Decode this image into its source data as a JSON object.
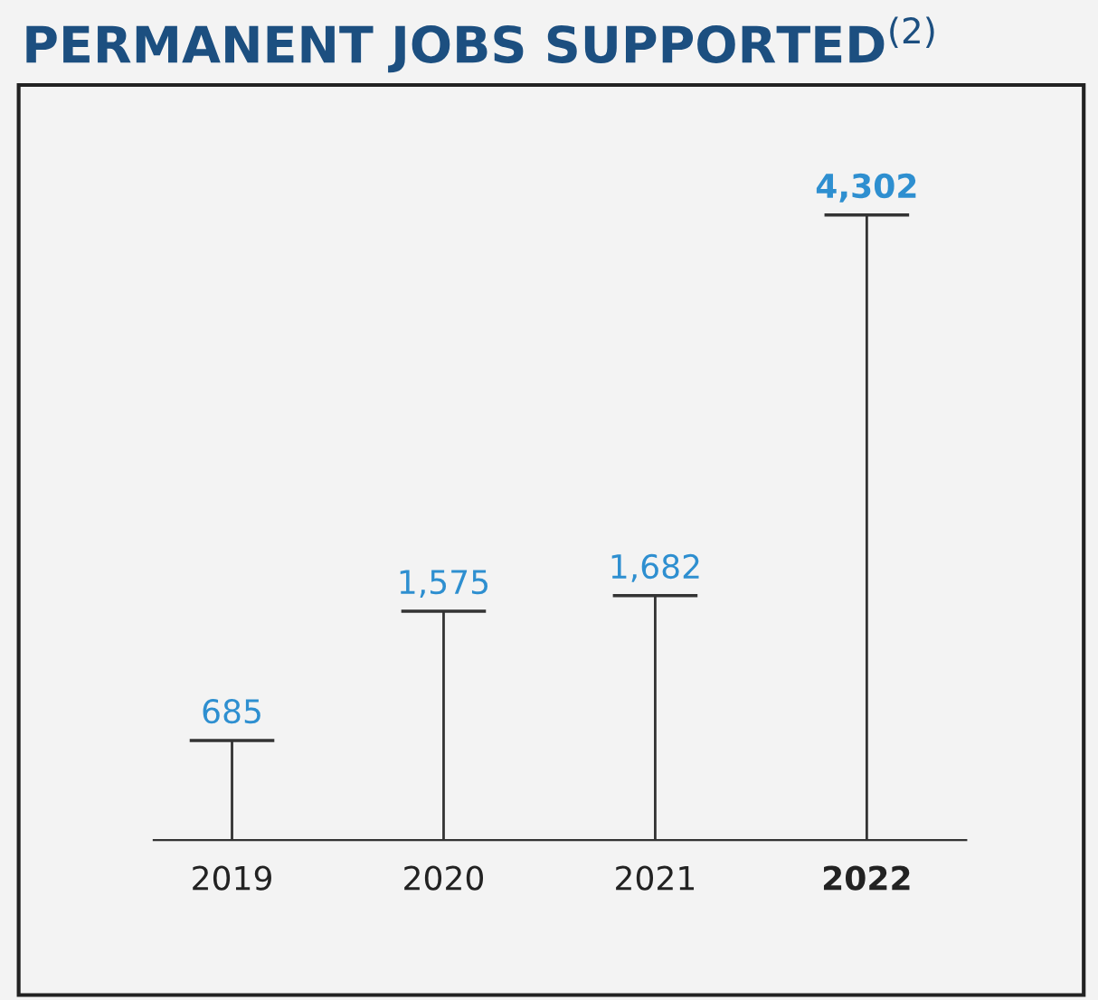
{
  "chart_data": {
    "type": "bar",
    "title": "PERMANENT JOBS SUPPORTED$^{(2)}$",
    "categories": [
      "2019",
      "2020",
      "2021",
      "2022"
    ],
    "series": [
      {
        "color": "#333333",
        "values": [
          685,
          1575,
          1682,
          4302
        ],
        "value_labels": [
          "685",
          "1,575",
          "1,682",
          "4,302"
        ]
      }
    ],
    "legend": false
  }
}
